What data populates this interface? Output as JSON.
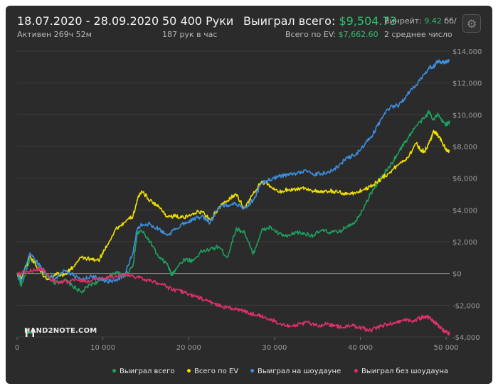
{
  "header": {
    "date_range": "18.07.2020 - 28.09.2020",
    "active_time": "Активен 269ч 52м",
    "hands": "50 400 Руки",
    "hands_per_hour": "187 рук в час",
    "won_total_label": "Выиграл всего:",
    "won_total_value": "$9,504.73",
    "ev_total_label": "Всего по EV:",
    "ev_total_value": "$7,662.60",
    "winrate_label": "Винрейт:",
    "winrate_value": "9.42",
    "winrate_unit": "бб/",
    "avg_note": "2 среднее число"
  },
  "settings": {
    "icon": "gear-icon"
  },
  "logo": {
    "text": "HAND2NOTE.COM"
  },
  "legend": {
    "items": [
      {
        "label": "Выиграл всего",
        "color": "#1fa060"
      },
      {
        "label": "Всего по EV",
        "color": "#f0e000"
      },
      {
        "label": "Выиграл на шоудауне",
        "color": "#3d8fe0"
      },
      {
        "label": "Выиграл без шоудауна",
        "color": "#e0306a"
      }
    ]
  },
  "chart_data": {
    "type": "line",
    "title": "",
    "xlabel": "",
    "ylabel": "",
    "xlim": [
      0,
      50400
    ],
    "ylim": [
      -4000,
      14000
    ],
    "x_ticks": [
      0,
      10000,
      20000,
      30000,
      40000,
      50000
    ],
    "x_tick_labels": [
      "0",
      "10 000",
      "20 000",
      "30 000",
      "40 000",
      "50 000"
    ],
    "y_ticks": [
      -4000,
      -2000,
      0,
      2000,
      4000,
      6000,
      8000,
      10000,
      12000,
      14000
    ],
    "y_tick_labels": [
      "-$4,000",
      "-$2,000",
      "$0",
      "$2,000",
      "$4,000",
      "$6,000",
      "$8,000",
      "$10,000",
      "$12,000",
      "$14,000"
    ],
    "grid": true,
    "legend_position": "bottom",
    "series": [
      {
        "name": "Выиграл всего",
        "color": "#1fa060",
        "x": [
          0,
          500,
          1500,
          2500,
          3500,
          4500,
          5500,
          6500,
          7500,
          8500,
          9500,
          10500,
          11500,
          12500,
          13500,
          14000,
          14500,
          15500,
          16500,
          17500,
          18000,
          18500,
          19500,
          20500,
          21500,
          22500,
          23500,
          24500,
          25500,
          26500,
          27500,
          28500,
          29500,
          30500,
          31500,
          32500,
          33500,
          34500,
          35500,
          36500,
          37500,
          38500,
          39500,
          40500,
          41500,
          42500,
          43500,
          44500,
          45500,
          46500,
          47500,
          48000,
          48500,
          49000,
          49500,
          50000,
          50400
        ],
        "y": [
          0,
          -800,
          900,
          500,
          -200,
          -600,
          -400,
          -800,
          -1200,
          -700,
          -500,
          -300,
          100,
          -200,
          500,
          2500,
          2700,
          2000,
          1000,
          600,
          -100,
          300,
          900,
          800,
          1400,
          1500,
          1700,
          1000,
          2800,
          2600,
          1200,
          2700,
          2900,
          2500,
          2300,
          2600,
          2500,
          2400,
          2700,
          2600,
          2600,
          3000,
          3300,
          4300,
          5300,
          6100,
          6800,
          7700,
          8500,
          9300,
          9800,
          10200,
          9700,
          10000,
          9600,
          9400,
          9500
        ]
      },
      {
        "name": "Всего по EV",
        "color": "#f0e000",
        "x": [
          0,
          500,
          1500,
          2500,
          3500,
          4500,
          5500,
          6500,
          7500,
          8500,
          9500,
          10500,
          11500,
          12500,
          13500,
          14000,
          14500,
          15500,
          16500,
          17500,
          18500,
          19500,
          20500,
          21500,
          22500,
          23500,
          24500,
          25500,
          26500,
          27500,
          28500,
          29500,
          30500,
          31500,
          32500,
          33500,
          34500,
          35500,
          36500,
          37500,
          38500,
          39500,
          40500,
          41500,
          42500,
          43500,
          44500,
          45500,
          46500,
          47000,
          47500,
          48000,
          48500,
          49000,
          49500,
          50000,
          50400
        ],
        "y": [
          0,
          -300,
          1100,
          300,
          -400,
          0,
          -100,
          400,
          1000,
          900,
          800,
          1800,
          2800,
          3200,
          3600,
          4600,
          5200,
          4600,
          4200,
          3600,
          3600,
          3500,
          3800,
          3900,
          3400,
          4100,
          4600,
          5000,
          4100,
          5000,
          5800,
          5500,
          5100,
          5300,
          5300,
          5400,
          5200,
          5100,
          5200,
          5100,
          5000,
          5100,
          5300,
          5600,
          6000,
          6400,
          6900,
          7300,
          8200,
          7800,
          7700,
          8200,
          8900,
          8800,
          8300,
          7800,
          7700
        ]
      },
      {
        "name": "Выиграл на шоудауне",
        "color": "#3d8fe0",
        "x": [
          0,
          500,
          1500,
          2500,
          3500,
          4500,
          5500,
          6500,
          7500,
          8500,
          9500,
          10500,
          11500,
          12500,
          13500,
          14000,
          14500,
          15500,
          16500,
          17500,
          18500,
          19500,
          20500,
          21500,
          22500,
          23500,
          24500,
          25500,
          26500,
          27500,
          28500,
          29500,
          30500,
          31500,
          32500,
          33500,
          34500,
          35500,
          36500,
          37500,
          38500,
          39500,
          40500,
          41500,
          42500,
          43500,
          44500,
          45500,
          46500,
          47500,
          48000,
          48500,
          49000,
          49500,
          50000,
          50400
        ],
        "y": [
          0,
          -500,
          1300,
          600,
          -100,
          -300,
          200,
          -100,
          -400,
          -200,
          -300,
          -500,
          -400,
          -100,
          1300,
          2800,
          3100,
          3100,
          2800,
          2400,
          2800,
          3200,
          3400,
          3600,
          3200,
          4200,
          4300,
          4400,
          4100,
          4600,
          5700,
          5900,
          6100,
          6200,
          6300,
          6500,
          6200,
          6300,
          6400,
          6800,
          7300,
          7500,
          8100,
          8800,
          9800,
          10500,
          10600,
          11300,
          11900,
          12600,
          13000,
          13000,
          13400,
          13300,
          13300,
          13400
        ]
      },
      {
        "name": "Выиграл без шоудауна",
        "color": "#e0306a",
        "x": [
          0,
          1000,
          2000,
          3000,
          4000,
          5000,
          6000,
          7000,
          8000,
          9000,
          10000,
          11000,
          12000,
          13000,
          14000,
          15000,
          16000,
          17000,
          18000,
          19000,
          20000,
          21000,
          22000,
          23000,
          24000,
          25000,
          26000,
          27000,
          28000,
          29000,
          30000,
          31000,
          32000,
          33000,
          34000,
          35000,
          36000,
          37000,
          38000,
          39000,
          40000,
          41000,
          42000,
          43000,
          44000,
          45000,
          46000,
          47000,
          47500,
          48000,
          48500,
          49000,
          49500,
          50000,
          50400
        ],
        "y": [
          0,
          100,
          200,
          300,
          -400,
          -600,
          -500,
          -400,
          -500,
          -400,
          -300,
          -200,
          -100,
          -100,
          -200,
          -400,
          -500,
          -700,
          -1000,
          -1100,
          -1300,
          -1500,
          -1700,
          -1900,
          -2100,
          -2200,
          -2300,
          -2500,
          -2600,
          -2800,
          -3000,
          -3200,
          -3300,
          -3200,
          -3100,
          -3300,
          -3200,
          -3300,
          -3400,
          -3300,
          -3400,
          -3600,
          -3400,
          -3200,
          -3100,
          -2900,
          -3000,
          -2800,
          -2700,
          -2800,
          -3000,
          -3200,
          -3500,
          -3700,
          -3800
        ]
      }
    ]
  }
}
